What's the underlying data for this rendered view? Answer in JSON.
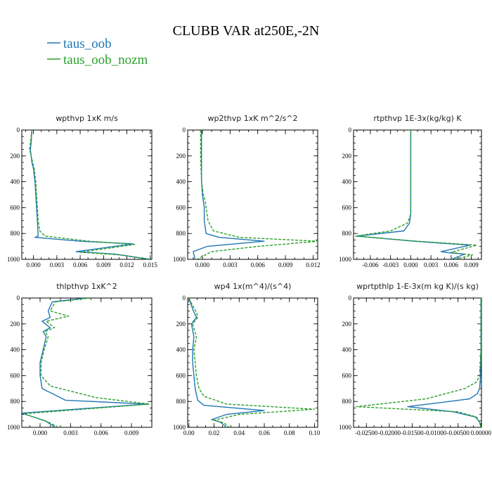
{
  "figure": {
    "title": "CLUBB VAR at250E,-2N",
    "legend": [
      {
        "label": "taus_oob",
        "color": "#1f77b4",
        "dash": "solid"
      },
      {
        "label": "taus_oob_nozm",
        "color": "#2ca02c",
        "dash": "dashed"
      }
    ]
  },
  "chart_data": [
    {
      "type": "line",
      "title": "wpthvp  1xK m/s",
      "xlim": [
        -0.0015,
        0.0152
      ],
      "ylim": [
        0,
        1000
      ],
      "y_inverted": true,
      "xticks": [
        0.0,
        0.003,
        0.006,
        0.009,
        0.012,
        0.015
      ],
      "xticklabels": [
        "0.000",
        "0.003",
        "0.006",
        "0.009",
        "0.012",
        "0.015"
      ],
      "yticks": [
        0,
        200,
        400,
        600,
        800,
        1000
      ],
      "yticklabels": [
        "0",
        "200",
        "400",
        "600",
        "800",
        "1000"
      ],
      "series": [
        {
          "name": "taus_oob",
          "color": "#1f77b4",
          "dash": "solid",
          "x": [
            -0.0002,
            -0.0003,
            -0.0004,
            -0.0003,
            -0.0002,
            0.0,
            0.0002,
            0.0003,
            0.0004,
            0.0005,
            0.0006,
            0.0002,
            0.006,
            0.0128,
            0.0055,
            0.0105,
            0.015
          ],
          "y": [
            0,
            100,
            150,
            200,
            250,
            300,
            400,
            500,
            600,
            700,
            820,
            830,
            860,
            880,
            940,
            960,
            1000
          ]
        },
        {
          "name": "taus_oob_nozm",
          "color": "#2ca02c",
          "dash": "dashed",
          "x": [
            -0.0002,
            -0.0004,
            -0.0005,
            -0.0003,
            -0.0001,
            0.0001,
            0.0003,
            0.0004,
            0.0005,
            0.0006,
            0.0008,
            0.0015,
            0.0072,
            0.013,
            0.006,
            0.011,
            0.0148
          ],
          "y": [
            0,
            100,
            150,
            200,
            250,
            300,
            400,
            500,
            600,
            700,
            780,
            820,
            860,
            885,
            945,
            965,
            1000
          ]
        }
      ]
    },
    {
      "type": "line",
      "title": "wp2thvp  1xK m^2/s^2",
      "xlim": [
        -0.0016,
        0.0125
      ],
      "ylim": [
        0,
        1000
      ],
      "y_inverted": true,
      "xticks": [
        0.0,
        0.003,
        0.006,
        0.009,
        0.012
      ],
      "xticklabels": [
        "0.000",
        "0.003",
        "0.006",
        "0.009",
        "0.012"
      ],
      "yticks": [
        0,
        200,
        400,
        600,
        800,
        1000
      ],
      "yticklabels": [
        "0",
        "200",
        "400",
        "600",
        "800",
        "1000"
      ],
      "series": [
        {
          "name": "taus_oob",
          "color": "#1f77b4",
          "dash": "solid",
          "x": [
            -0.0001,
            -0.0001,
            -0.0001,
            0.0,
            0.0001,
            0.0002,
            0.0002,
            0.0004,
            0.0018,
            0.0067,
            0.0005,
            -0.001,
            -0.0008
          ],
          "y": [
            0,
            200,
            400,
            500,
            550,
            600,
            700,
            800,
            830,
            860,
            900,
            940,
            1000
          ]
        },
        {
          "name": "taus_oob_nozm",
          "color": "#2ca02c",
          "dash": "dashed",
          "x": [
            -0.0002,
            -0.0002,
            -0.0001,
            0.0001,
            0.0003,
            0.0004,
            0.0006,
            0.0012,
            0.004,
            0.0125,
            0.006,
            0.001,
            -0.0006
          ],
          "y": [
            0,
            200,
            400,
            500,
            550,
            600,
            700,
            780,
            830,
            860,
            900,
            940,
            1000
          ]
        }
      ]
    },
    {
      "type": "line",
      "title": "rtpthvp  1E-3x(kg/kg) K",
      "xlim": [
        -0.0085,
        0.0105
      ],
      "ylim": [
        0,
        1000
      ],
      "y_inverted": true,
      "xticks": [
        -0.006,
        -0.003,
        0.0,
        0.003,
        0.006,
        0.009
      ],
      "xticklabels": [
        "-0.006",
        "-0.003",
        "0.000",
        "0.003",
        "0.006",
        "0.009"
      ],
      "yticks": [
        0,
        200,
        400,
        600,
        800,
        1000
      ],
      "yticklabels": [
        "0",
        "200",
        "400",
        "600",
        "800",
        "1000"
      ],
      "series": [
        {
          "name": "taus_oob",
          "color": "#1f77b4",
          "dash": "solid",
          "x": [
            0.0,
            0.0,
            0.0,
            -0.0002,
            -0.001,
            -0.008,
            0.0005,
            0.0088,
            0.0045,
            0.0058,
            0.008,
            0.006
          ],
          "y": [
            0,
            400,
            650,
            720,
            780,
            820,
            860,
            890,
            940,
            950,
            960,
            1000
          ]
        },
        {
          "name": "taus_oob_nozm",
          "color": "#2ca02c",
          "dash": "dashed",
          "x": [
            0.0,
            0.0,
            0.0,
            -0.0005,
            -0.003,
            -0.0082,
            0.001,
            0.0098,
            0.006,
            0.0072,
            0.0092,
            0.0065
          ],
          "y": [
            0,
            400,
            650,
            720,
            780,
            820,
            860,
            890,
            945,
            955,
            965,
            1000
          ]
        }
      ]
    },
    {
      "type": "line",
      "title": "thlpthvp  1xK^2",
      "xlim": [
        -0.0018,
        0.011
      ],
      "ylim": [
        0,
        1000
      ],
      "y_inverted": true,
      "xticks": [
        0.0,
        0.003,
        0.006,
        0.009
      ],
      "xticklabels": [
        "0.000",
        "0.003",
        "0.006",
        "0.009"
      ],
      "yticks": [
        0,
        200,
        400,
        600,
        800,
        1000
      ],
      "yticklabels": [
        "0",
        "200",
        "400",
        "600",
        "800",
        "1000"
      ],
      "series": [
        {
          "name": "taus_oob",
          "color": "#1f77b4",
          "dash": "solid",
          "x": [
            0.0045,
            0.0012,
            0.0008,
            0.001,
            0.0002,
            0.001,
            0.0003,
            0.0006,
            0.0003,
            0.0,
            0.0,
            0.0002,
            0.0025,
            0.0105,
            -0.0018,
            0.0005,
            0.0015
          ],
          "y": [
            0,
            30,
            100,
            150,
            180,
            230,
            260,
            300,
            400,
            500,
            600,
            700,
            790,
            820,
            890,
            950,
            1000
          ]
        },
        {
          "name": "taus_oob_nozm",
          "color": "#2ca02c",
          "dash": "dashed",
          "x": [
            0.005,
            0.0015,
            0.001,
            0.0028,
            0.0006,
            0.0014,
            0.0005,
            0.0008,
            0.0004,
            0.0001,
            0.0001,
            0.001,
            0.0055,
            0.0108,
            -0.0016,
            0.0007,
            0.0018
          ],
          "y": [
            0,
            30,
            100,
            140,
            180,
            230,
            260,
            300,
            400,
            500,
            600,
            680,
            770,
            820,
            895,
            955,
            1000
          ]
        }
      ]
    },
    {
      "type": "line",
      "title": "wp4  1x(m^4)/(s^4)",
      "xlim": [
        -0.001,
        0.1025
      ],
      "ylim": [
        0,
        1000
      ],
      "y_inverted": true,
      "xticks": [
        0.0,
        0.02,
        0.04,
        0.06,
        0.08,
        0.1
      ],
      "xticklabels": [
        "0.00",
        "0.02",
        "0.04",
        "0.06",
        "0.08",
        "0.10"
      ],
      "yticks": [
        0,
        200,
        400,
        600,
        800,
        1000
      ],
      "yticklabels": [
        "0",
        "200",
        "400",
        "600",
        "800",
        "1000"
      ],
      "series": [
        {
          "name": "taus_oob",
          "color": "#1f77b4",
          "dash": "solid",
          "x": [
            0.0,
            0.002,
            0.004,
            0.006,
            0.002,
            0.004,
            0.003,
            0.003,
            0.004,
            0.005,
            0.007,
            0.012,
            0.06,
            0.03,
            0.018,
            0.025,
            0.03
          ],
          "y": [
            0,
            60,
            110,
            150,
            200,
            300,
            400,
            500,
            600,
            700,
            790,
            830,
            870,
            900,
            940,
            960,
            1000
          ]
        },
        {
          "name": "taus_oob_nozm",
          "color": "#2ca02c",
          "dash": "dashed",
          "x": [
            0.0,
            0.003,
            0.006,
            0.007,
            0.003,
            0.006,
            0.004,
            0.005,
            0.006,
            0.008,
            0.012,
            0.03,
            0.1,
            0.04,
            0.02,
            0.028,
            0.032
          ],
          "y": [
            0,
            60,
            110,
            150,
            200,
            300,
            400,
            500,
            600,
            700,
            760,
            820,
            860,
            900,
            945,
            965,
            1000
          ]
        }
      ]
    },
    {
      "type": "line",
      "title": "wprtpthlp  1-E-3x(m kg K)/(s kg)",
      "xlim": [
        -0.0278,
        0.0001
      ],
      "ylim": [
        0,
        1000
      ],
      "y_inverted": true,
      "xticks": [
        -0.025,
        -0.02,
        -0.015,
        -0.01,
        -0.005,
        0.0
      ],
      "xticklabels": [
        "-0.02500",
        "-0.02000",
        "-0.01500",
        "-0.01000",
        "-0.00500",
        "0.00000"
      ],
      "yticks": [
        0,
        200,
        400,
        600,
        800,
        1000
      ],
      "yticklabels": [
        "0",
        "200",
        "400",
        "600",
        "800",
        "1000"
      ],
      "series": [
        {
          "name": "taus_oob",
          "color": "#1f77b4",
          "dash": "solid",
          "x": [
            0.0,
            0.0,
            -0.0001,
            -0.0003,
            -0.0008,
            -0.0025,
            -0.016,
            -0.006,
            -0.0012,
            -0.0003,
            0.0
          ],
          "y": [
            0,
            400,
            600,
            700,
            740,
            780,
            840,
            880,
            920,
            960,
            1000
          ]
        },
        {
          "name": "taus_oob_nozm",
          "color": "#2ca02c",
          "dash": "dashed",
          "x": [
            0.0,
            0.0,
            -0.0003,
            -0.001,
            -0.0035,
            -0.012,
            -0.0272,
            -0.005,
            -0.001,
            -0.0003,
            0.0
          ],
          "y": [
            0,
            400,
            600,
            650,
            700,
            780,
            840,
            880,
            920,
            960,
            1000
          ]
        }
      ]
    }
  ]
}
